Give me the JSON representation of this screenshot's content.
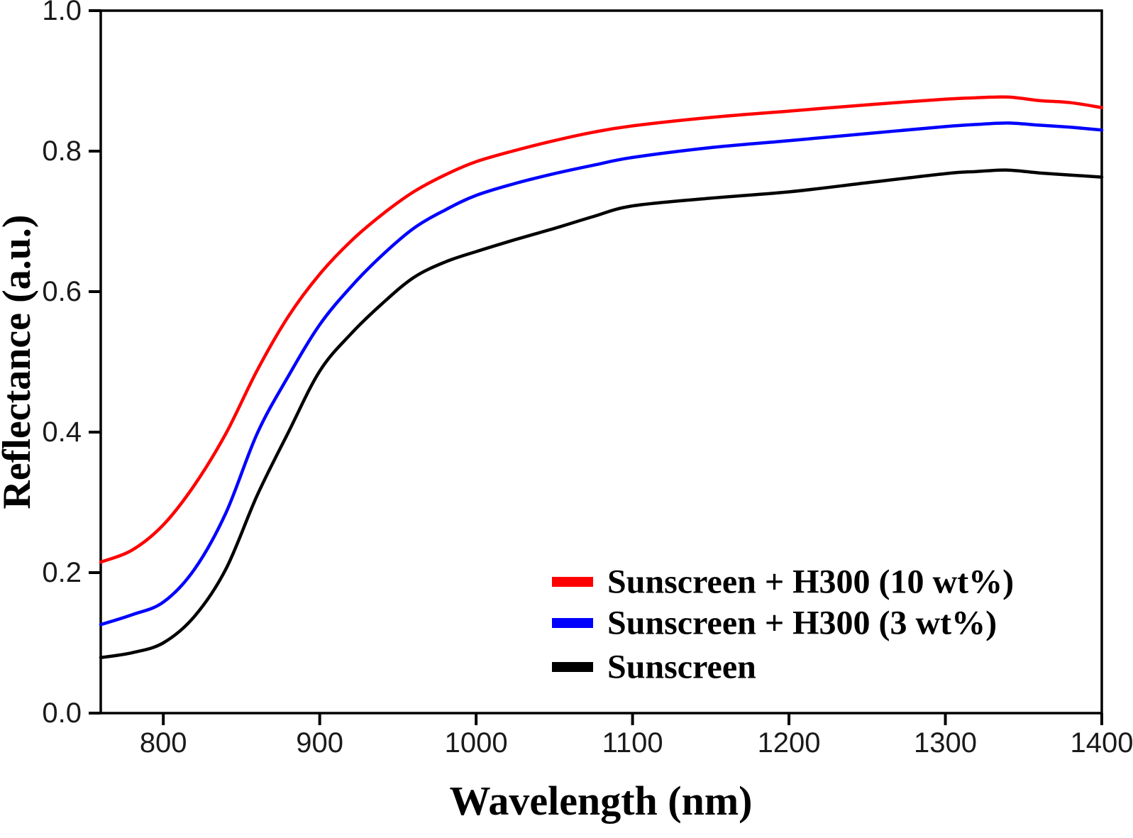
{
  "chart_data": {
    "type": "line",
    "title": "",
    "xlabel": "Wavelength (nm)",
    "ylabel": "Reflectance (a.u.)",
    "xlim": [
      760,
      1400
    ],
    "ylim": [
      0.0,
      1.0
    ],
    "x_ticks": [
      800,
      900,
      1000,
      1100,
      1200,
      1300,
      1400
    ],
    "y_ticks": [
      0.0,
      0.2,
      0.4,
      0.6,
      0.8,
      1.0
    ],
    "grid": false,
    "frame": "full-box",
    "legend_position": "lower-right-inside",
    "axis_color": "#000000",
    "background_color": "#ffffff",
    "x": [
      760,
      780,
      800,
      820,
      840,
      860,
      880,
      900,
      920,
      940,
      960,
      980,
      1000,
      1025,
      1050,
      1075,
      1100,
      1150,
      1200,
      1250,
      1300,
      1320,
      1340,
      1360,
      1380,
      1400
    ],
    "series": [
      {
        "name": "Sunscreen + H300 (10 wt%)",
        "color": "#ff0000",
        "values": [
          0.215,
          0.232,
          0.268,
          0.325,
          0.398,
          0.488,
          0.565,
          0.625,
          0.672,
          0.71,
          0.742,
          0.766,
          0.785,
          0.801,
          0.815,
          0.827,
          0.836,
          0.848,
          0.857,
          0.866,
          0.874,
          0.876,
          0.877,
          0.872,
          0.869,
          0.862
        ]
      },
      {
        "name": "Sunscreen + H300 (3 wt%)",
        "color": "#0000ff",
        "values": [
          0.126,
          0.14,
          0.158,
          0.205,
          0.285,
          0.398,
          0.48,
          0.553,
          0.607,
          0.652,
          0.69,
          0.716,
          0.737,
          0.754,
          0.768,
          0.78,
          0.791,
          0.805,
          0.815,
          0.825,
          0.835,
          0.838,
          0.84,
          0.837,
          0.834,
          0.83
        ]
      },
      {
        "name": "Sunscreen",
        "color": "#000000",
        "values": [
          0.079,
          0.086,
          0.1,
          0.138,
          0.205,
          0.31,
          0.4,
          0.487,
          0.54,
          0.583,
          0.62,
          0.642,
          0.657,
          0.674,
          0.69,
          0.707,
          0.722,
          0.733,
          0.742,
          0.755,
          0.768,
          0.771,
          0.773,
          0.769,
          0.766,
          0.763
        ]
      }
    ]
  }
}
